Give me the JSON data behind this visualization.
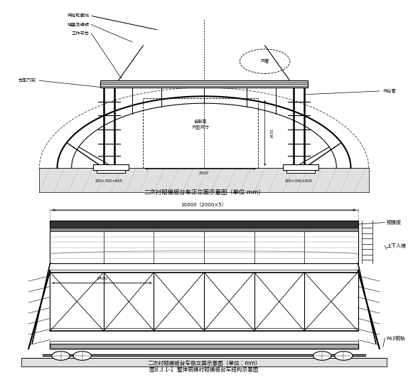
{
  "title1": "二次衬砌模板台车正立面示意图（单位:mm）",
  "title2": "二次衬砌模板台车侧立面示意图（单位：mm）",
  "title3": "图8.3.1-1  整体钢模衬砌模板台车结构示意图",
  "labels_top_left": [
    "开挖轮廓线",
    "端盖及模板",
    "工作平台"
  ],
  "label_left": "台车门架",
  "label_right": "作业管",
  "label_fenguan": "风管",
  "dim1_l": "200×300×600",
  "dim1_r": "200×300×600",
  "dim_2500": "2500",
  "dim_3435": "3435",
  "dim_vehicle": "自制车\n外型尺寸",
  "dim_length": "10000（2000×5）",
  "dim_width": "2400",
  "label_steel": "钢模板",
  "label_ladder": "上下人梯",
  "label_rail": "P43钢轨",
  "bg_color": "#ffffff",
  "lc": "#000000",
  "gray": "#666666"
}
